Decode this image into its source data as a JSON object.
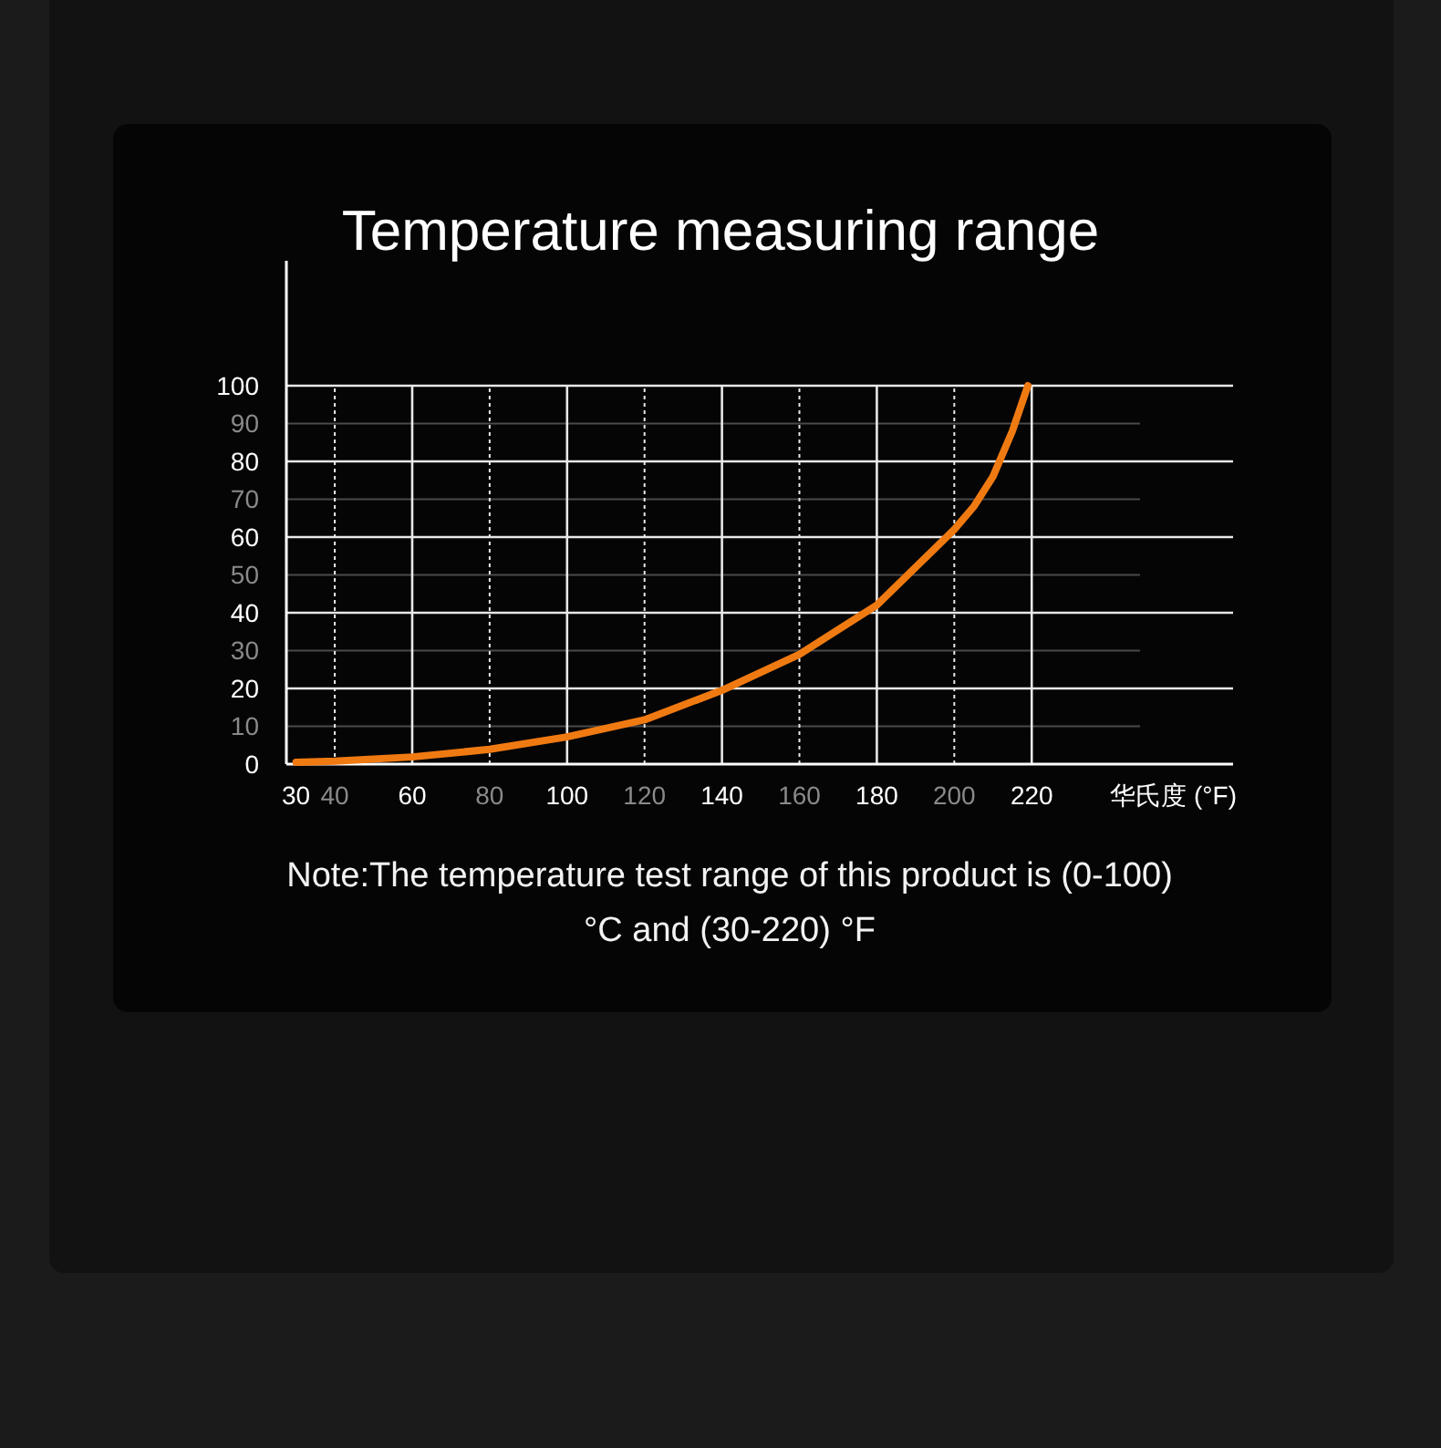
{
  "chart_data": {
    "type": "line",
    "title": "Temperature measuring range",
    "xlabel": "华氏度 (°F)",
    "xlim": [
      27.5,
      272
    ],
    "ylim": [
      0,
      133
    ],
    "xticks": [
      30,
      40,
      60,
      80,
      100,
      120,
      140,
      160,
      180,
      200,
      220
    ],
    "yticks": [
      0,
      10,
      20,
      30,
      40,
      50,
      60,
      70,
      80,
      90,
      100
    ],
    "grid": true,
    "x": [
      30,
      40,
      60,
      80,
      100,
      120,
      140,
      160,
      180,
      200,
      205,
      210,
      215,
      219
    ],
    "series": [
      {
        "color": "#f07a12",
        "values": [
          0.5,
          0.8,
          1.9,
          3.9,
          7.2,
          11.7,
          19.5,
          29,
          42,
          62,
          68,
          76,
          88,
          100
        ]
      }
    ],
    "annotations": [
      "Note:The temperature test range of this product is (0-100) °C and (30-220) °F"
    ]
  }
}
